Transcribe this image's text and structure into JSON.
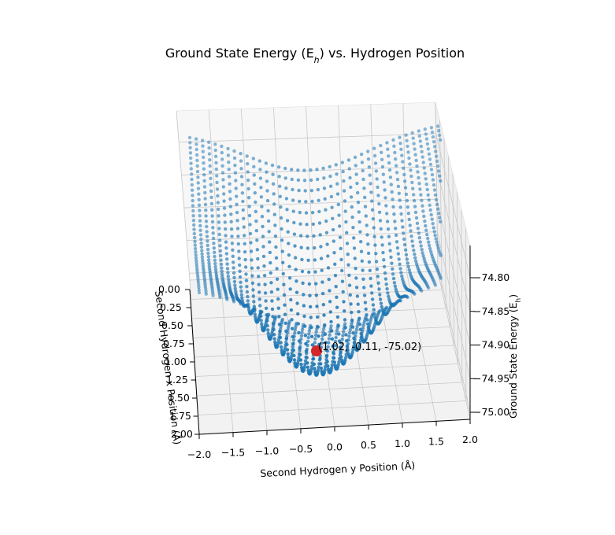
{
  "chart_data": {
    "type": "scatter",
    "title": "Ground State Energy (E",
    "title_sub": "h",
    "title_tail": ") vs. Hydrogen Position",
    "xlabel": "Second Hydrogen x Position (Å)",
    "ylabel": "Second Hydrogen y Position (Å)",
    "zlabel": "Ground State Energy (E",
    "zlabel_sub": "h",
    "zlabel_tail": ")",
    "x_ticks": [
      "0.00",
      "0.25",
      "0.50",
      "0.75",
      "1.00",
      "1.25",
      "1.50",
      "1.75",
      "2.00"
    ],
    "y_ticks": [
      "−2.0",
      "−1.5",
      "−1.0",
      "−0.5",
      "0.0",
      "0.5",
      "1.0",
      "1.5",
      "2.0"
    ],
    "z_ticks": [
      "−74.80",
      "−74.85",
      "−74.90",
      "−74.95",
      "−75.00"
    ],
    "xlim": [
      0,
      2
    ],
    "ylim": [
      -2,
      2
    ],
    "zlim": [
      -75.0,
      -74.78
    ],
    "point_color": "#1f77b4",
    "minimum": {
      "x": 1.02,
      "y": -0.11,
      "z": -75.02,
      "color": "#d62728"
    },
    "annotation": "(1.02, -0.11, -75.02)",
    "grid": true
  }
}
